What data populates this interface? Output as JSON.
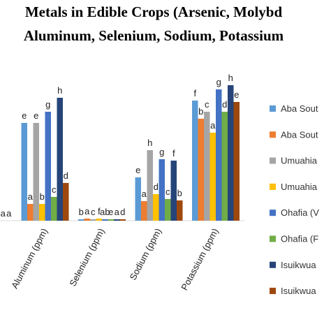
{
  "chart_data": {
    "type": "bar",
    "title_lines": [
      "Metals in Edible Crops (Arsenic, Molybd",
      "Aluminum, Selenium, Sodium, Potassium"
    ],
    "categories": [
      null,
      "Aluminum (ppm)",
      "Selenium (ppm)",
      "Sodium (ppm)",
      "Potassium (ppm)"
    ],
    "series": [
      {
        "name": "Aba Sout",
        "color": "#5b9bd5",
        "values": [
          0,
          140,
          2,
          62,
          172
        ],
        "letters": [
          null,
          "e",
          "b",
          "e",
          "f"
        ]
      },
      {
        "name": "Aba Sout",
        "color": "#ed7d31",
        "values": [
          0,
          24,
          3,
          28,
          146
        ],
        "letters": [
          null,
          "a",
          "a",
          "a",
          "b"
        ]
      },
      {
        "name": "Umuahia",
        "color": "#a5a5a5",
        "values": [
          0,
          140,
          2,
          101,
          156
        ],
        "letters": [
          null,
          "e",
          "c",
          "h",
          "c"
        ]
      },
      {
        "name": "Umuahia",
        "color": "#ffc000",
        "values": [
          0,
          24,
          3,
          38,
          126
        ],
        "letters": [
          null,
          "b",
          "f",
          "d",
          "a"
        ]
      },
      {
        "name": "Ohafia (V",
        "color": "#4472c4",
        "values": [
          0,
          156,
          2,
          88,
          188
        ],
        "letters": [
          null,
          "g",
          "ab",
          "g",
          "g"
        ]
      },
      {
        "name": "Ohafia (F",
        "color": "#70ad47",
        "values": [
          0,
          34,
          2,
          31,
          156
        ],
        "letters": [
          null,
          "c",
          "e",
          "c",
          "d"
        ]
      },
      {
        "name": "Isuikwua",
        "color": "#264478",
        "values": [
          0,
          176,
          2,
          86,
          194
        ],
        "letters": [
          "a",
          "h",
          "a",
          "f",
          "h"
        ]
      },
      {
        "name": "Isuikwua",
        "color": "#9e480e",
        "values": [
          0,
          54,
          2,
          29,
          170
        ],
        "letters": [
          "a",
          "d",
          "d",
          "b",
          "e"
        ]
      }
    ]
  }
}
